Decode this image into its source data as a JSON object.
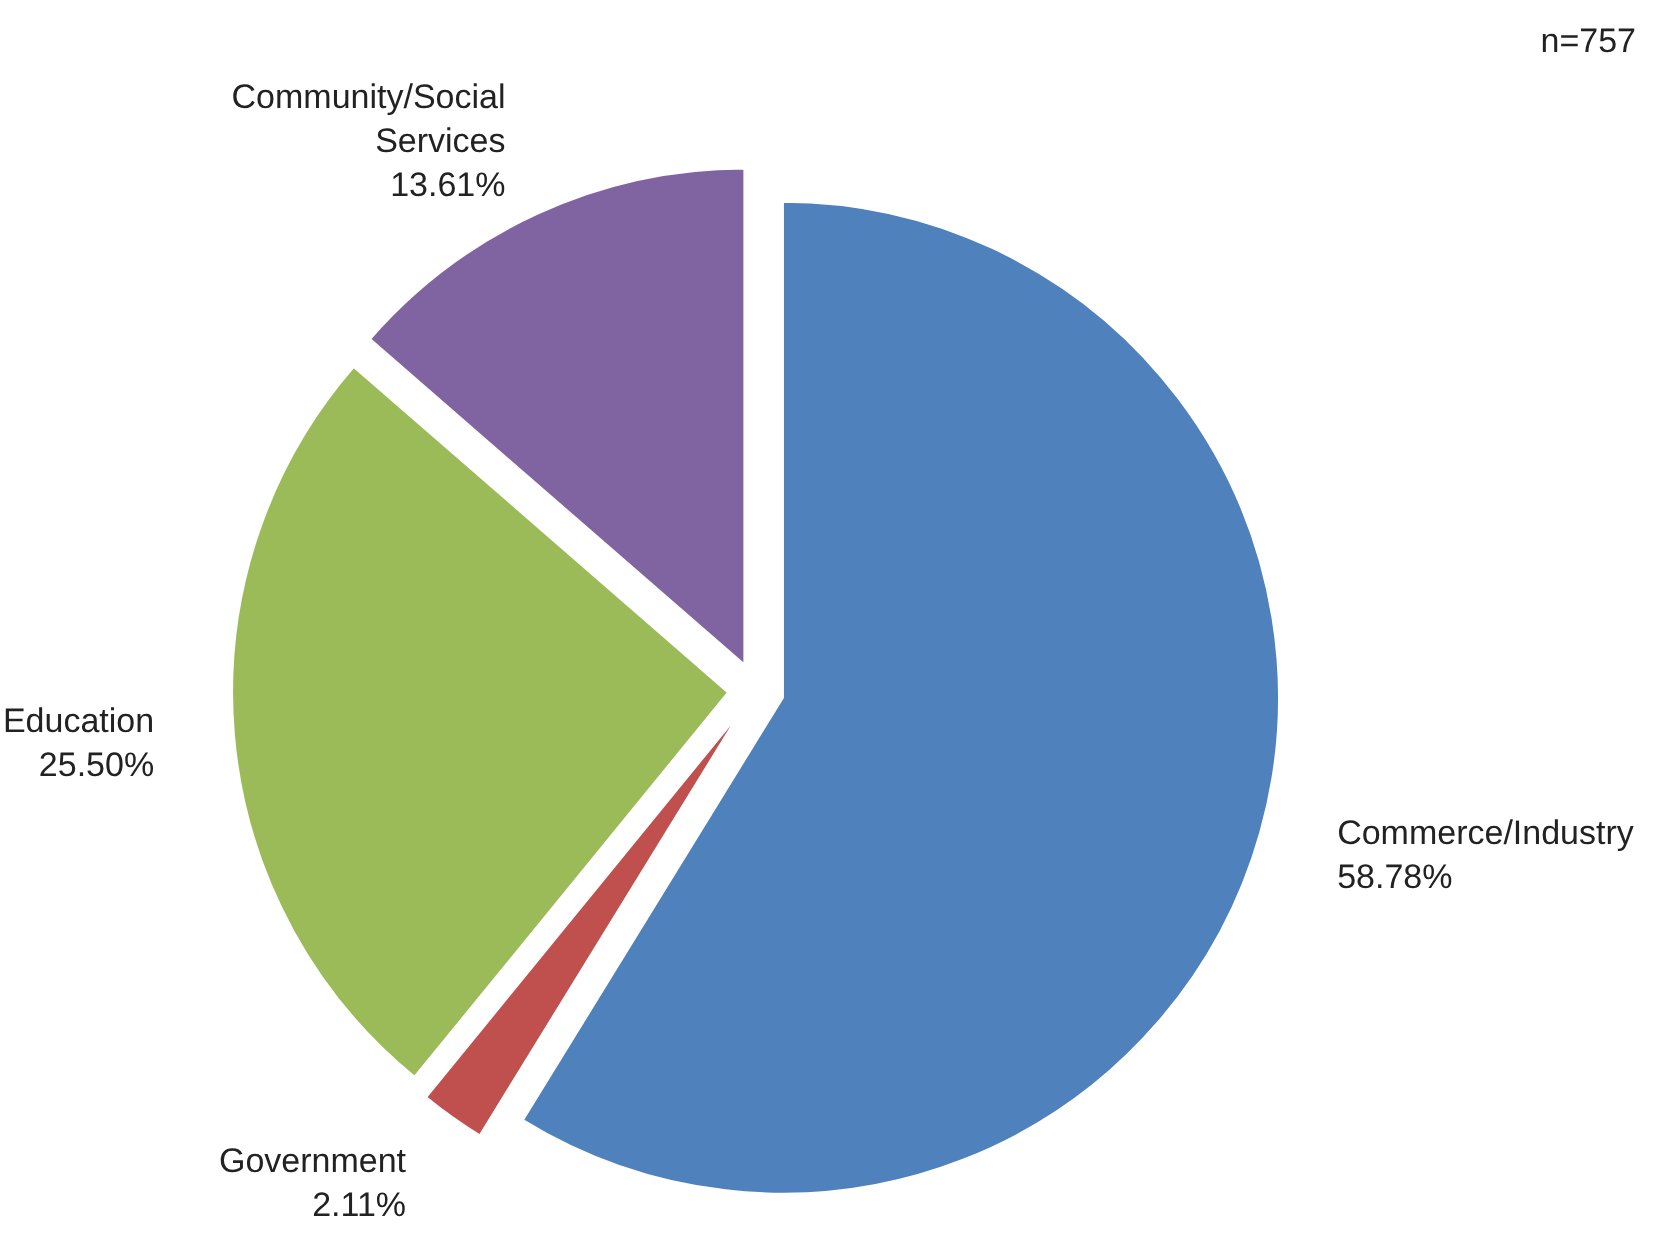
{
  "chart_data": {
    "type": "pie",
    "categories": [
      "Commerce/Industry",
      "Government",
      "Education",
      "Community/Social Services"
    ],
    "values": [
      58.78,
      2.11,
      25.5,
      13.61
    ],
    "value_labels": [
      "58.78%",
      "2.11%",
      "25.50%",
      "13.61%"
    ],
    "colors": [
      "#4f81bd",
      "#c0504d",
      "#9bbb59",
      "#8064a2"
    ],
    "annotations": [
      "n=757"
    ]
  }
}
